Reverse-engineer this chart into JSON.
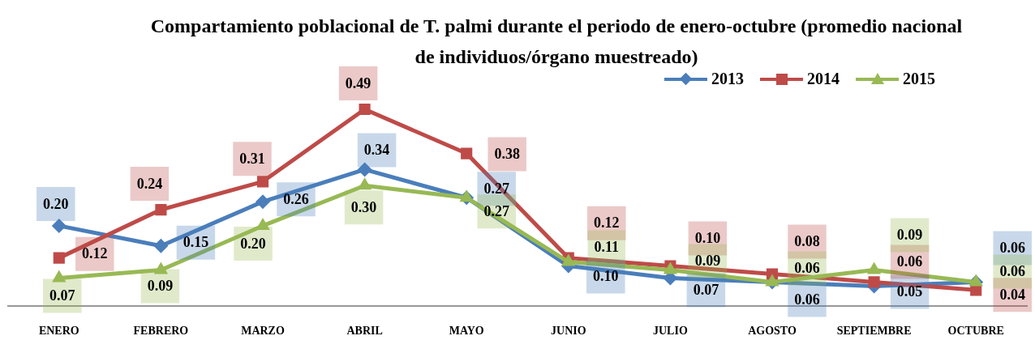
{
  "chart_data": {
    "type": "line",
    "title": "Compartamiento poblacional de T. palmi durante el periodo de enero-octubre (promedio nacional de individuos/órgano muestreado)",
    "categories": [
      "ENERO",
      "FEBRERO",
      "MARZO",
      "ABRIL",
      "MAYO",
      "JUNIO",
      "JULIO",
      "AGOSTO",
      "SEPTIEMBRE",
      "OCTUBRE"
    ],
    "series": [
      {
        "name": "2013",
        "color": "#4a7ebb",
        "marker": "diamond",
        "values": [
          0.2,
          0.15,
          0.26,
          0.34,
          0.27,
          0.1,
          0.07,
          0.06,
          0.05,
          0.06
        ],
        "value_labels": [
          "0.20",
          "0.15",
          "0.26",
          "0.34",
          "0.27",
          "0.10",
          "0.07",
          "0.06",
          "0.05",
          "0.06"
        ]
      },
      {
        "name": "2014",
        "color": "#be4b48",
        "marker": "square",
        "values": [
          0.12,
          0.24,
          0.31,
          0.49,
          0.38,
          0.12,
          0.1,
          0.08,
          0.06,
          0.04
        ],
        "value_labels": [
          "0.12",
          "0.24",
          "0.31",
          "0.49",
          "0.38",
          "0.12",
          "0.10",
          "0.08",
          "0.06",
          "0.04"
        ]
      },
      {
        "name": "2015",
        "color": "#98b954",
        "marker": "triangle",
        "values": [
          0.07,
          0.09,
          0.2,
          0.3,
          0.27,
          0.11,
          0.09,
          0.06,
          0.09,
          0.06
        ],
        "value_labels": [
          "0.07",
          "0.09",
          "0.20",
          "0.30",
          "0.27",
          "0.11",
          "0.09",
          "0.06",
          "0.09",
          "0.06"
        ]
      }
    ],
    "legend": "top right",
    "tick_labels": "x"
  }
}
